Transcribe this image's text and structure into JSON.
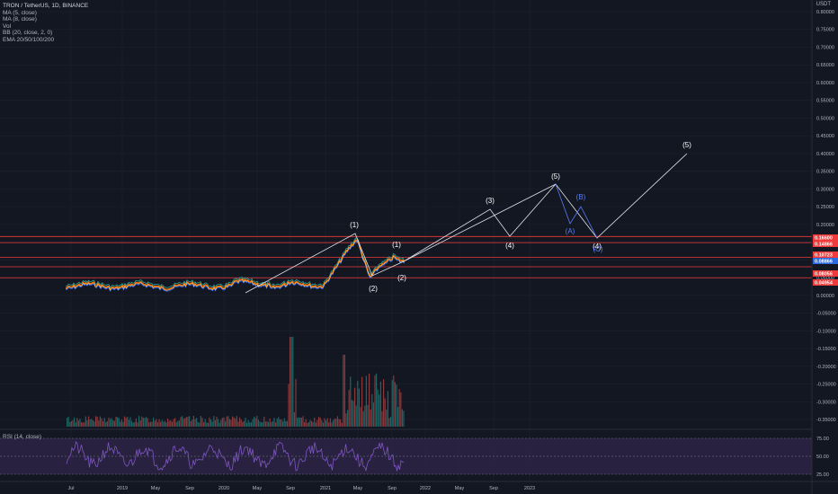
{
  "header": {
    "symbol_line": "TRON / TetherUS, 1D, BINANCE",
    "currency": "USDT"
  },
  "indicators": [
    "MA (5, close)",
    "MA (8, close)",
    "Vol",
    "BB (20, close, 2, 0)",
    "EMA 20/50/100/200"
  ],
  "rsi_label": "RSI (14, close)",
  "colors": {
    "background": "#131722",
    "grid": "#1e2230",
    "horizontal_lines": "#ef3b3b",
    "wave_lines": "#e0e3eb",
    "corrective_lines": "#5b7cf7",
    "rsi_line": "#7e57c2",
    "rsi_band": "#3a2a5a"
  },
  "chart_data": {
    "type": "line",
    "price_axis_ticks": [
      "0.80000",
      "0.75000",
      "0.70000",
      "0.65000",
      "0.60000",
      "0.55000",
      "0.50000",
      "0.45000",
      "0.40000",
      "0.35000",
      "0.30000",
      "0.25000",
      "0.20000",
      "0.15000",
      "0.10000",
      "0.05000",
      "0.00000",
      "-0.05000",
      "-0.10000",
      "-0.15000",
      "-0.20000",
      "-0.25000",
      "-0.30000",
      "-0.35000"
    ],
    "price_axis_range": [
      -0.35,
      0.8
    ],
    "rsi_axis_ticks": [
      "75.00",
      "50.00",
      "25.00"
    ],
    "time_axis_ticks": [
      "Jul",
      "2019",
      "May",
      "Sep",
      "2020",
      "May",
      "Sep",
      "2021",
      "May",
      "Sep",
      "2022",
      "May",
      "Sep",
      "2023"
    ],
    "price_tags": [
      {
        "label": "0.16600",
        "color": "#ef3b3b"
      },
      {
        "label": "0.14866",
        "color": "#ef3b3b"
      },
      {
        "label": "0.10723",
        "color": "#ef3b3b"
      },
      {
        "label": "0.08866",
        "color": "#2b6be0"
      },
      {
        "label": "0.08056",
        "color": "#ef3b3b"
      },
      {
        "label": "0.04954",
        "color": "#ef3b3b"
      }
    ],
    "horizontal_levels": [
      0.166,
      0.14866,
      0.10723,
      0.08056,
      0.04954
    ],
    "wave_labels": [
      "(1)",
      "(2)",
      "(1)",
      "(2)",
      "(3)",
      "(4)",
      "(5)",
      "(4)",
      "(5)"
    ],
    "corrective_labels": [
      "(A)",
      "(B)",
      "(C)"
    ],
    "grid": true
  }
}
